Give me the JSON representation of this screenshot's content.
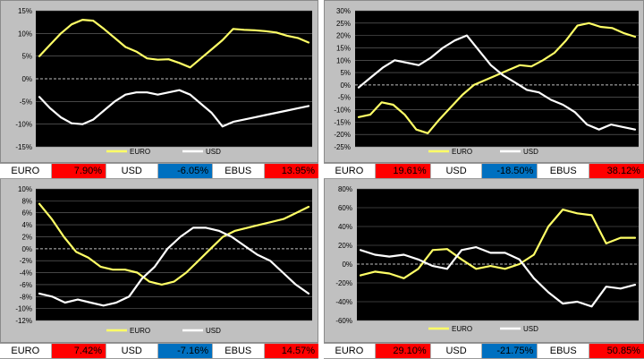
{
  "colors": {
    "euro_line": "#ffff66",
    "usd_line": "#ffffff",
    "plot_bg": "#000000",
    "positive": "#ff0000",
    "negative": "#0070c0"
  },
  "chart_data": [
    {
      "type": "line",
      "ylim": [
        -15,
        15
      ],
      "yticks": [
        "15%",
        "10%",
        "5%",
        "0%",
        "-5%",
        "-10%",
        "-15%"
      ],
      "grid": true,
      "legend": "bottom",
      "series": [
        {
          "name": "EURO",
          "values": [
            5,
            7.5,
            10,
            12,
            13,
            12.8,
            11,
            9,
            7,
            6,
            4.5,
            4.2,
            4.3,
            3.5,
            2.5,
            4.5,
            6.5,
            8.5,
            11,
            10.8,
            10.7,
            10.5,
            10.2,
            9.5,
            9,
            8
          ]
        },
        {
          "name": "USD",
          "values": [
            -4,
            -6.5,
            -8.5,
            -9.8,
            -10,
            -9,
            -7,
            -5,
            -3.5,
            -3,
            -3,
            -3.5,
            -3,
            -2.5,
            -3.5,
            -5.5,
            -7.5,
            -10.5,
            -9.5,
            -9,
            -8.5,
            -8,
            -7.5,
            -7,
            -6.5,
            -6
          ]
        }
      ]
    },
    {
      "type": "line",
      "ylim": [
        -25,
        30
      ],
      "yticks": [
        "30%",
        "25%",
        "20%",
        "15%",
        "10%",
        "5%",
        "0%",
        "-5%",
        "-10%",
        "-15%",
        "-20%",
        "-25%"
      ],
      "grid": true,
      "legend": "bottom",
      "series": [
        {
          "name": "EURO",
          "values": [
            -13,
            -12,
            -7,
            -8,
            -12,
            -18,
            -19.5,
            -14,
            -9,
            -4,
            0,
            2,
            4,
            6,
            8,
            7.5,
            10,
            13,
            18,
            24,
            25,
            23.5,
            23,
            21,
            19.5
          ]
        },
        {
          "name": "USD",
          "values": [
            -1,
            3,
            7,
            10,
            9,
            8,
            11,
            15,
            18,
            20,
            14,
            8,
            4,
            1,
            -2,
            -3,
            -6,
            -8,
            -11,
            -16,
            -18,
            -16,
            -17,
            -18
          ]
        }
      ]
    },
    {
      "type": "line",
      "ylim": [
        -12,
        10
      ],
      "yticks": [
        "10%",
        "8%",
        "6%",
        "4%",
        "2%",
        "0%",
        "-2%",
        "-4%",
        "-6%",
        "-8%",
        "-10%",
        "-12%"
      ],
      "grid": true,
      "legend": "bottom",
      "series": [
        {
          "name": "EURO",
          "values": [
            7.5,
            5,
            2,
            -0.5,
            -1.5,
            -3,
            -3.5,
            -3.5,
            -4,
            -5.5,
            -6,
            -5.5,
            -4,
            -2,
            0,
            2,
            3,
            3.5,
            4,
            4.5,
            5,
            6,
            7
          ]
        },
        {
          "name": "USD",
          "values": [
            -7.5,
            -8,
            -9,
            -8.5,
            -9,
            -9.5,
            -9,
            -8,
            -5,
            -3,
            0,
            2,
            3.5,
            3.5,
            3,
            2,
            0.5,
            -1,
            -2,
            -4,
            -6,
            -7.5
          ]
        }
      ]
    },
    {
      "type": "line",
      "ylim": [
        -60,
        80
      ],
      "yticks": [
        "80%",
        "60%",
        "40%",
        "20%",
        "0%",
        "-20%",
        "-40%",
        "-60%"
      ],
      "grid": true,
      "legend": "bottom",
      "series": [
        {
          "name": "EURO",
          "values": [
            -12,
            -8,
            -10,
            -15,
            -5,
            15,
            16,
            5,
            -5,
            -2,
            -5,
            0,
            10,
            40,
            58,
            54,
            52,
            22,
            28,
            28
          ]
        },
        {
          "name": "USD",
          "values": [
            15,
            10,
            8,
            10,
            5,
            -2,
            -5,
            15,
            18,
            12,
            12,
            5,
            -15,
            -30,
            -42,
            -40,
            -45,
            -24,
            -26,
            -22
          ]
        }
      ]
    }
  ],
  "summaries": [
    {
      "cells": [
        "EURO",
        "7.90%",
        "USD",
        "-6.05%",
        "EBUS",
        "13.95%"
      ]
    },
    {
      "cells": [
        "EURO",
        "19.61%",
        "USD",
        "-18.50%",
        "EBUS",
        "38.12%"
      ]
    },
    {
      "cells": [
        "EURO",
        "7.42%",
        "USD",
        "-7.16%",
        "EBUS",
        "14.57%"
      ]
    },
    {
      "cells": [
        "EURO",
        "29.10%",
        "USD",
        "-21.75%",
        "EBUS",
        "50.85%"
      ]
    }
  ]
}
